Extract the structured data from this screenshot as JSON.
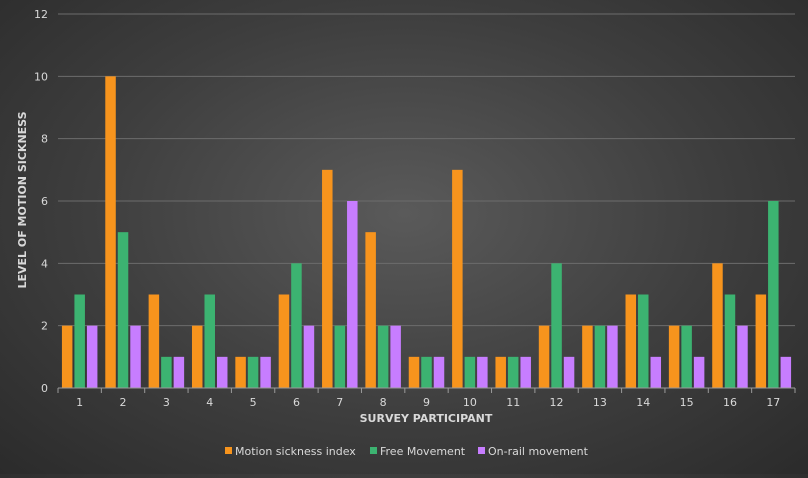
{
  "chart_data": {
    "type": "bar",
    "title": "",
    "xlabel": "SURVEY PARTICIPANT",
    "ylabel": "LEVEL OF MOTION SICKNESS",
    "ylim": [
      0,
      12
    ],
    "yticks": [
      "0",
      "2",
      "4",
      "6",
      "8",
      "10",
      "12"
    ],
    "categories": [
      "1",
      "2",
      "3",
      "4",
      "5",
      "6",
      "7",
      "8",
      "9",
      "10",
      "11",
      "12",
      "13",
      "14",
      "15",
      "16",
      "17"
    ],
    "grid": true,
    "legend_position": "bottom",
    "series": [
      {
        "name": "Motion sickness index",
        "color": "#f7941d",
        "values": [
          2,
          10,
          3,
          2,
          1,
          3,
          7,
          5,
          1,
          7,
          1,
          2,
          2,
          3,
          2,
          4,
          3
        ]
      },
      {
        "name": "Free Movement",
        "color": "#3cb371",
        "values": [
          3,
          5,
          1,
          3,
          1,
          4,
          2,
          2,
          1,
          1,
          1,
          4,
          2,
          3,
          2,
          3,
          6
        ]
      },
      {
        "name": "On-rail movement",
        "color": "#c77dff",
        "values": [
          2,
          2,
          1,
          1,
          1,
          2,
          6,
          2,
          1,
          1,
          1,
          1,
          2,
          1,
          1,
          2,
          1
        ]
      }
    ]
  }
}
